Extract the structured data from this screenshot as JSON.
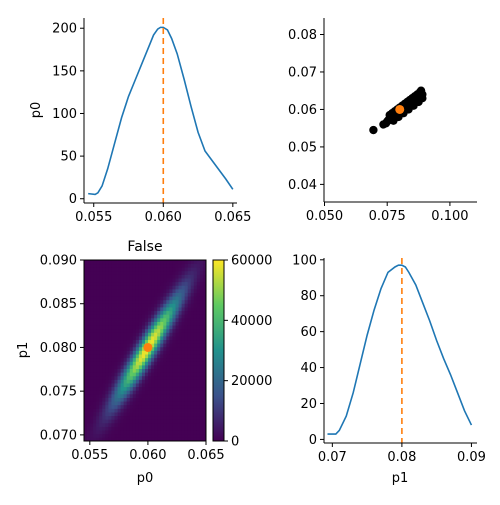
{
  "chart_data": [
    {
      "id": "p0_density",
      "type": "line",
      "title": "",
      "xlabel": "",
      "ylabel": "p0",
      "xlim": [
        0.0543,
        0.0653
      ],
      "ylim": [
        -5,
        212
      ],
      "x_ticks": [
        0.055,
        0.06,
        0.065
      ],
      "x_tick_labels": [
        "0.055",
        "0.060",
        "0.065"
      ],
      "y_ticks": [
        0,
        50,
        100,
        150,
        200
      ],
      "y_tick_labels": [
        "0",
        "50",
        "100",
        "150",
        "200"
      ],
      "reference_x": 0.06,
      "series": [
        {
          "x": [
            0.0546,
            0.0551,
            0.0553,
            0.0556,
            0.056,
            0.0565,
            0.057,
            0.0575,
            0.058,
            0.0585,
            0.059,
            0.0593,
            0.0596,
            0.0598,
            0.06,
            0.0603,
            0.0606,
            0.061,
            0.0615,
            0.062,
            0.0625,
            0.063,
            0.0635,
            0.064,
            0.0645,
            0.065
          ],
          "y": [
            6,
            5,
            7,
            15,
            35,
            65,
            95,
            120,
            140,
            160,
            180,
            192,
            199,
            201,
            201,
            198,
            188,
            170,
            140,
            108,
            78,
            56,
            45,
            34,
            23,
            11
          ]
        }
      ],
      "colors": {
        "line": "#1f77b4",
        "reference": "#ff7f0e"
      }
    },
    {
      "id": "scatter_p1_p0",
      "type": "scatter",
      "title": "",
      "xlabel": "",
      "ylabel": "",
      "xlim": [
        0.0498,
        0.1108
      ],
      "ylim": [
        0.0353,
        0.0844
      ],
      "x_ticks": [
        0.05,
        0.075,
        0.1
      ],
      "x_tick_labels": [
        "0.050",
        "0.075",
        "0.100"
      ],
      "y_ticks": [
        0.04,
        0.05,
        0.06,
        0.07,
        0.08
      ],
      "y_tick_labels": [
        "0.04",
        "0.05",
        "0.06",
        "0.07",
        "0.08"
      ],
      "series": [
        {
          "x": [
            0.0695,
            0.0735,
            0.0745,
            0.075,
            0.0755,
            0.076,
            0.0765,
            0.077,
            0.0775,
            0.078,
            0.0785,
            0.079,
            0.0795,
            0.08,
            0.0805,
            0.081,
            0.0815,
            0.082,
            0.0825,
            0.083,
            0.0835,
            0.084,
            0.0845,
            0.085,
            0.0855,
            0.086,
            0.0865,
            0.087,
            0.0875,
            0.088,
            0.0885,
            0.089,
            0.076,
            0.077,
            0.078,
            0.079,
            0.08,
            0.081,
            0.082,
            0.083,
            0.084,
            0.085,
            0.086,
            0.087,
            0.088,
            0.0775,
            0.0795,
            0.0815,
            0.0835,
            0.0855,
            0.0875,
            0.089,
            0.0885,
            0.088,
            0.087
          ],
          "y": [
            0.0545,
            0.056,
            0.0563,
            0.0568,
            0.0572,
            0.0575,
            0.0578,
            0.058,
            0.0583,
            0.0585,
            0.0588,
            0.059,
            0.0593,
            0.0595,
            0.0598,
            0.06,
            0.0603,
            0.0605,
            0.0608,
            0.061,
            0.0612,
            0.0615,
            0.0617,
            0.062,
            0.0622,
            0.0625,
            0.0627,
            0.063,
            0.0632,
            0.0635,
            0.0637,
            0.064,
            0.0585,
            0.059,
            0.0595,
            0.06,
            0.0605,
            0.061,
            0.0615,
            0.062,
            0.0625,
            0.063,
            0.0635,
            0.064,
            0.0645,
            0.057,
            0.058,
            0.059,
            0.06,
            0.061,
            0.062,
            0.063,
            0.065,
            0.0645,
            0.0625
          ]
        },
        {
          "x": [
            0.08
          ],
          "y": [
            0.06
          ]
        }
      ],
      "colors": {
        "points": "#000000",
        "reference": "#ff7f0e"
      }
    },
    {
      "id": "hist2d_p0_p1",
      "type": "heatmap",
      "title": "False",
      "xlabel": "p0",
      "ylabel": "p1",
      "xlim": [
        0.0545,
        0.065
      ],
      "ylim": [
        0.0693,
        0.09
      ],
      "x_ticks": [
        0.055,
        0.06,
        0.065
      ],
      "x_tick_labels": [
        "0.055",
        "0.060",
        "0.065"
      ],
      "y_ticks": [
        0.07,
        0.075,
        0.08,
        0.085,
        0.09
      ],
      "y_tick_labels": [
        "0.070",
        "0.075",
        "0.080",
        "0.085",
        "0.090"
      ],
      "colorbar": {
        "range": [
          0,
          60000
        ],
        "ticks": [
          0,
          20000,
          40000,
          60000
        ],
        "tick_labels": [
          "0",
          "20000",
          "40000",
          "60000"
        ]
      },
      "distribution": {
        "mean_p0": 0.06,
        "mean_p1": 0.08,
        "sd_p0": 0.0019,
        "sd_p1": 0.0041,
        "correlation": 0.95,
        "peak_count": 60000
      },
      "reference_point": {
        "x": 0.06,
        "y": 0.08
      },
      "colors": {
        "reference": "#ff7f0e"
      }
    },
    {
      "id": "p1_density",
      "type": "line",
      "title": "",
      "xlabel": "p1",
      "ylabel": "",
      "xlim": [
        0.0688,
        0.0908
      ],
      "ylim": [
        -2,
        101
      ],
      "x_ticks": [
        0.07,
        0.08,
        0.09
      ],
      "x_tick_labels": [
        "0.07",
        "0.08",
        "0.09"
      ],
      "y_ticks": [
        0,
        20,
        40,
        60,
        80,
        100
      ],
      "y_tick_labels": [
        "0",
        "20",
        "40",
        "60",
        "80",
        "100"
      ],
      "reference_x": 0.08,
      "series": [
        {
          "x": [
            0.0693,
            0.07,
            0.0705,
            0.071,
            0.072,
            0.073,
            0.074,
            0.075,
            0.076,
            0.077,
            0.078,
            0.079,
            0.0795,
            0.08,
            0.0805,
            0.081,
            0.082,
            0.083,
            0.084,
            0.085,
            0.086,
            0.087,
            0.088,
            0.089,
            0.09
          ],
          "y": [
            3,
            3,
            3,
            5,
            13,
            26,
            42,
            58,
            72,
            84,
            93,
            96,
            97,
            97,
            96,
            93,
            86,
            76,
            66,
            55,
            45,
            36,
            26,
            16,
            8
          ]
        }
      ],
      "colors": {
        "line": "#1f77b4",
        "reference": "#ff7f0e"
      }
    }
  ]
}
